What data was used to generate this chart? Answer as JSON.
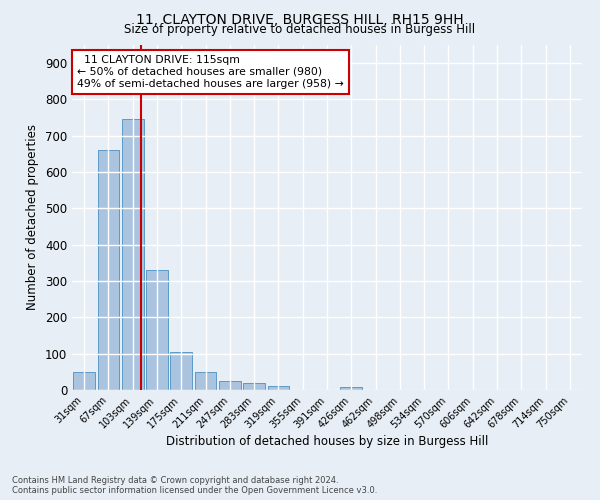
{
  "title": "11, CLAYTON DRIVE, BURGESS HILL, RH15 9HH",
  "subtitle": "Size of property relative to detached houses in Burgess Hill",
  "xlabel": "Distribution of detached houses by size in Burgess Hill",
  "ylabel": "Number of detached properties",
  "footer_line1": "Contains HM Land Registry data © Crown copyright and database right 2024.",
  "footer_line2": "Contains public sector information licensed under the Open Government Licence v3.0.",
  "bin_labels": [
    "31sqm",
    "67sqm",
    "103sqm",
    "139sqm",
    "175sqm",
    "211sqm",
    "247sqm",
    "283sqm",
    "319sqm",
    "355sqm",
    "391sqm",
    "426sqm",
    "462sqm",
    "498sqm",
    "534sqm",
    "570sqm",
    "606sqm",
    "642sqm",
    "678sqm",
    "714sqm",
    "750sqm"
  ],
  "bar_heights": [
    50,
    660,
    745,
    330,
    105,
    50,
    25,
    18,
    12,
    0,
    0,
    8,
    0,
    0,
    0,
    0,
    0,
    0,
    0,
    0,
    0
  ],
  "bar_color": "#aac4e0",
  "bar_edge_color": "#5a9ac8",
  "background_color": "#e8eef5",
  "grid_color": "#ffffff",
  "property_line_color": "#cc0000",
  "annotation_line1": "  11 CLAYTON DRIVE: 115sqm",
  "annotation_line2": "← 50% of detached houses are smaller (980)",
  "annotation_line3": "49% of semi-detached houses are larger (958) →",
  "annotation_box_color": "#ffffff",
  "annotation_box_edge": "#cc0000",
  "ylim": [
    0,
    950
  ],
  "yticks": [
    0,
    100,
    200,
    300,
    400,
    500,
    600,
    700,
    800,
    900
  ],
  "prop_sqm": 115,
  "bin_start_sqm": [
    31,
    67,
    103,
    139,
    175,
    211,
    247,
    283,
    319,
    355,
    391,
    426,
    462,
    498,
    534,
    570,
    606,
    642,
    678,
    714,
    750
  ]
}
